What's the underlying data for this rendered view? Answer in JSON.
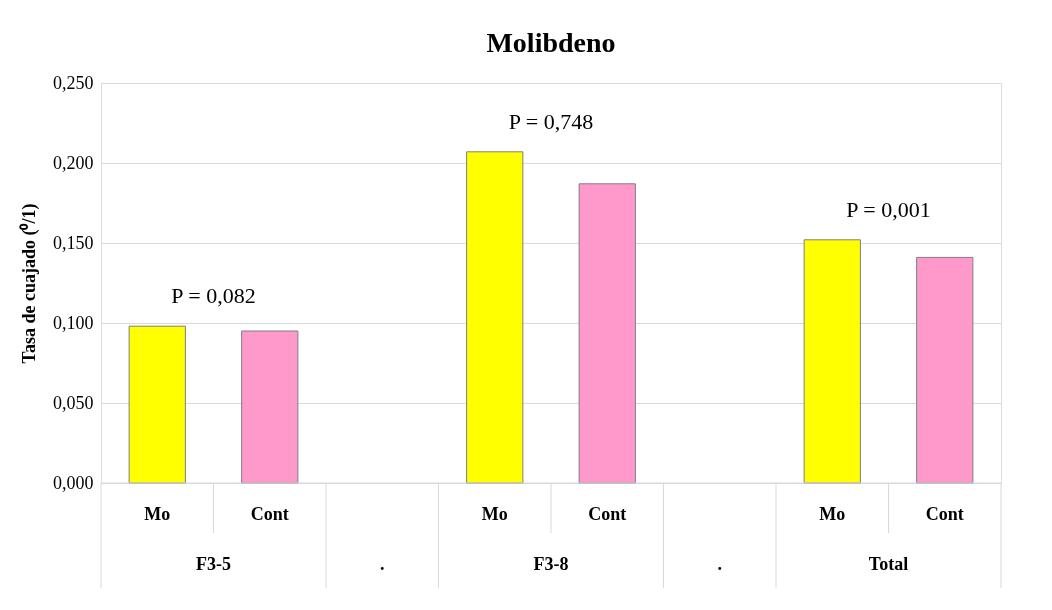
{
  "chart_data": {
    "type": "bar",
    "title": "Molibdeno",
    "ylabel": "Tasa de cuajado (⁰/1)",
    "categories": [
      "Mo",
      "Cont",
      null,
      "Mo",
      "Cont",
      null,
      "Mo",
      "Cont"
    ],
    "values": [
      0.098,
      0.095,
      null,
      0.207,
      0.187,
      null,
      0.152,
      0.141
    ],
    "colors": [
      "#ffff00",
      "#ff99cc",
      null,
      "#ffff00",
      "#ff99cc",
      null,
      "#ffff00",
      "#ff99cc"
    ],
    "ylim": [
      0,
      0.25
    ],
    "yticks": [
      {
        "value": 0,
        "label": "0,000"
      },
      {
        "value": 0.05,
        "label": "0,050"
      },
      {
        "value": 0.1,
        "label": "0,100"
      },
      {
        "value": 0.15,
        "label": "0,150"
      },
      {
        "value": 0.2,
        "label": "0,200"
      },
      {
        "value": 0.25,
        "label": "0,250"
      }
    ],
    "grid": "y",
    "annotations": [
      "P = 0,082",
      "P = 0,748",
      "P = 0,001",
      "F3-5",
      ".",
      "F3-8",
      ".",
      "Total"
    ]
  }
}
